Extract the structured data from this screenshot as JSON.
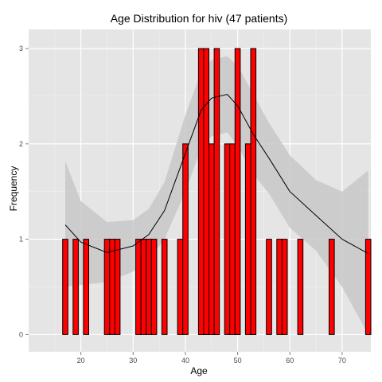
{
  "chart_data": {
    "type": "bar",
    "title": "Age Distribution for hiv (47 patients)",
    "xlabel": "Age",
    "ylabel": "Frequency",
    "xlim": [
      10,
      75.5
    ],
    "ylim": [
      -0.18,
      3.2
    ],
    "xticks": [
      20,
      30,
      40,
      50,
      60,
      70
    ],
    "yticks": [
      0,
      1,
      2,
      3
    ],
    "grid": true,
    "colors": {
      "panel": "#e5e5e5",
      "grid_major": "#ffffff",
      "grid_minor": "#f2f2f2",
      "bar_fill": "#ff0000",
      "bar_stroke": "#000000",
      "band": "#c8c8c8",
      "line": "#000000"
    },
    "bars": [
      {
        "age": 17,
        "count": 1
      },
      {
        "age": 19,
        "count": 1
      },
      {
        "age": 21,
        "count": 1
      },
      {
        "age": 25,
        "count": 1
      },
      {
        "age": 26,
        "count": 1
      },
      {
        "age": 27,
        "count": 1
      },
      {
        "age": 31,
        "count": 1
      },
      {
        "age": 32,
        "count": 1
      },
      {
        "age": 33,
        "count": 1
      },
      {
        "age": 34,
        "count": 1
      },
      {
        "age": 36,
        "count": 1
      },
      {
        "age": 39,
        "count": 1
      },
      {
        "age": 40,
        "count": 2
      },
      {
        "age": 43,
        "count": 3
      },
      {
        "age": 44,
        "count": 3
      },
      {
        "age": 45,
        "count": 2
      },
      {
        "age": 46,
        "count": 3
      },
      {
        "age": 48,
        "count": 2
      },
      {
        "age": 49,
        "count": 2
      },
      {
        "age": 50,
        "count": 3
      },
      {
        "age": 52,
        "count": 2
      },
      {
        "age": 53,
        "count": 3
      },
      {
        "age": 56,
        "count": 1
      },
      {
        "age": 58,
        "count": 1
      },
      {
        "age": 59,
        "count": 1
      },
      {
        "age": 62,
        "count": 1
      },
      {
        "age": 68,
        "count": 1
      },
      {
        "age": 75,
        "count": 1
      }
    ],
    "smooth": {
      "x": [
        17,
        20,
        25,
        30,
        33,
        36,
        40,
        43,
        45,
        48,
        50,
        53,
        56,
        60,
        65,
        70,
        75
      ],
      "y": [
        1.15,
        0.97,
        0.86,
        0.93,
        1.05,
        1.3,
        1.9,
        2.35,
        2.48,
        2.52,
        2.4,
        2.1,
        1.85,
        1.5,
        1.25,
        1.0,
        0.85
      ],
      "upper": [
        1.82,
        1.4,
        1.18,
        1.2,
        1.32,
        1.6,
        2.3,
        2.75,
        2.88,
        2.92,
        2.82,
        2.52,
        2.22,
        1.88,
        1.62,
        1.5,
        1.72
      ],
      "lower": [
        0.5,
        0.52,
        0.55,
        0.66,
        0.78,
        1.0,
        1.5,
        1.95,
        2.08,
        2.12,
        1.98,
        1.68,
        1.48,
        1.12,
        0.88,
        0.5,
        0.0
      ]
    }
  }
}
